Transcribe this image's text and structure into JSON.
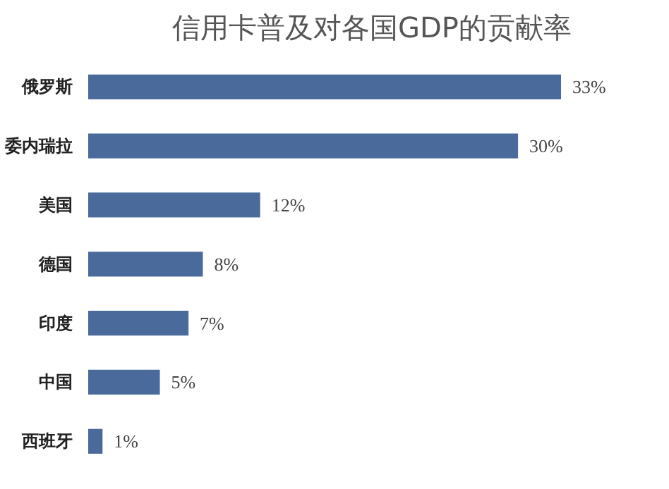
{
  "chart_data": {
    "type": "bar",
    "orientation": "horizontal",
    "title": "信用卡普及对各国GDP的贡献率",
    "categories": [
      "俄罗斯",
      "委内瑞拉",
      "美国",
      "德国",
      "印度",
      "中国",
      "西班牙"
    ],
    "values": [
      33,
      30,
      12,
      8,
      7,
      5,
      1
    ],
    "value_labels": [
      "33%",
      "30%",
      "12%",
      "8%",
      "7%",
      "5%",
      "1%"
    ],
    "color": "#4a6a9c",
    "grid": false
  }
}
